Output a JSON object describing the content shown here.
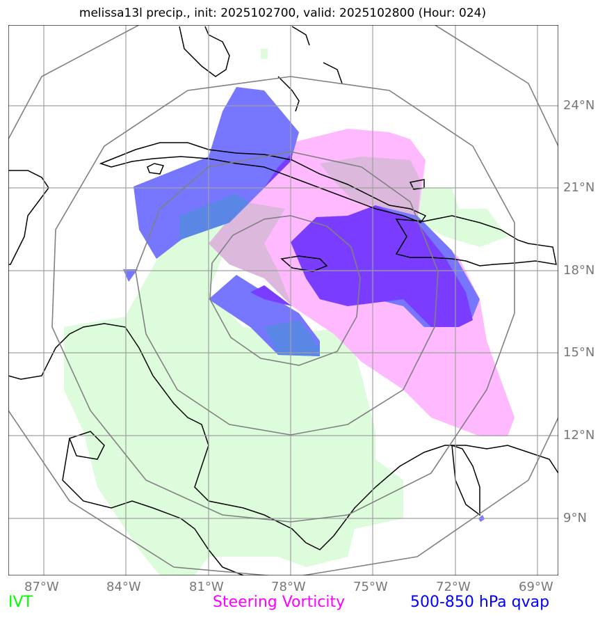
{
  "title": "melissa13l precip., init: 2025102700, valid: 2025102800 (Hour: 024)",
  "axes": {
    "lon_labels": [
      "87°W",
      "84°W",
      "81°W",
      "78°W",
      "75°W",
      "72°W",
      "69°W"
    ],
    "lat_labels": [
      "24°N",
      "21°N",
      "18°N",
      "15°N",
      "12°N",
      "9°N"
    ],
    "lon_values": [
      -87,
      -84,
      -81,
      -78,
      -75,
      -72,
      -69
    ],
    "lat_values": [
      24,
      21,
      18,
      15,
      12,
      9
    ]
  },
  "legend": {
    "ivt": {
      "label": "IVT",
      "color": "#00ff00"
    },
    "steer": {
      "label": "Steering Vorticity",
      "color": "#ff00ff"
    },
    "qvap": {
      "label": "500-850 hPa qvap",
      "color": "#0000ff"
    }
  },
  "colors": {
    "ivt_fill": "#dcfcdc",
    "steer_fill": "#ffb9ff",
    "qvap_fill": "#7676ff",
    "overlap_fill": "#7a3cff",
    "grid": "#a0a0a0",
    "range_rings": "#808080",
    "coast": "#000000"
  }
}
